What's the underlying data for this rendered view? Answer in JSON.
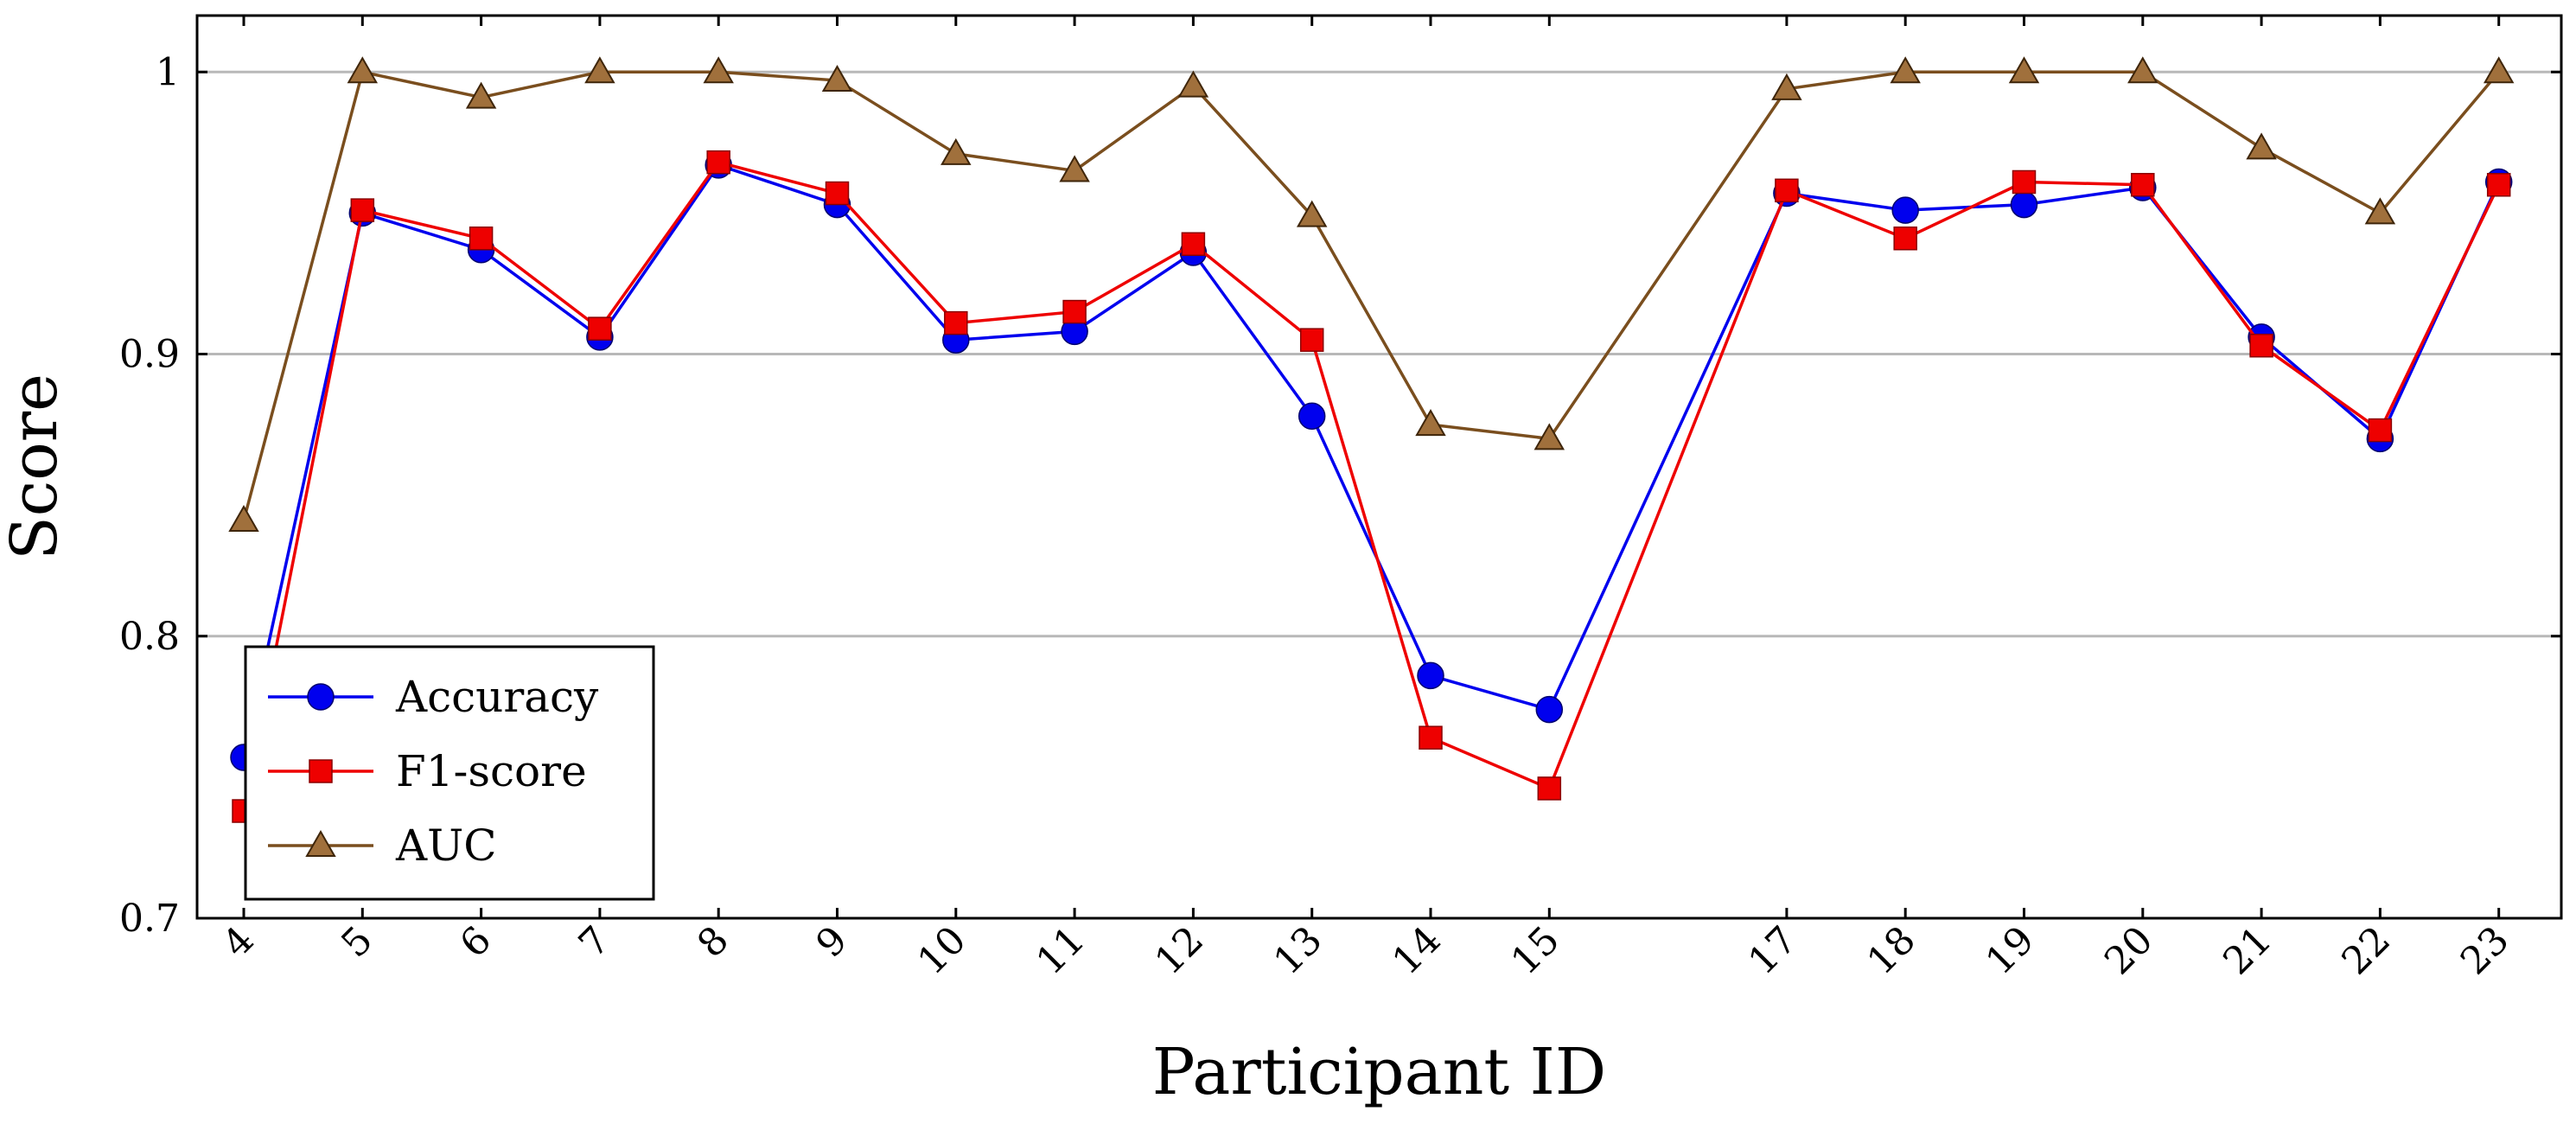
{
  "chart_data": {
    "type": "line",
    "xlabel": "Participant ID",
    "ylabel": "Score",
    "ylim": [
      0.7,
      1.02
    ],
    "xlim": [
      3.6,
      23.5
    ],
    "yticks": [
      0.7,
      0.8,
      0.9,
      1.0
    ],
    "ytick_labels": [
      "0.7",
      "0.8",
      "0.9",
      "1"
    ],
    "x": [
      4,
      5,
      6,
      7,
      8,
      9,
      10,
      11,
      12,
      13,
      14,
      15,
      17,
      18,
      19,
      20,
      21,
      22,
      23
    ],
    "xtick_labels": [
      "4",
      "5",
      "6",
      "7",
      "8",
      "9",
      "10",
      "11",
      "12",
      "13",
      "14",
      "15",
      "17",
      "18",
      "19",
      "20",
      "21",
      "22",
      "23"
    ],
    "grid": "horizontal",
    "legend_position": "bottom-left",
    "series": [
      {
        "name": "Accuracy",
        "color": "#0000ee",
        "marker": "circle",
        "values": [
          0.757,
          0.95,
          0.937,
          0.906,
          0.967,
          0.953,
          0.905,
          0.908,
          0.936,
          0.878,
          0.786,
          0.774,
          0.957,
          0.951,
          0.953,
          0.959,
          0.906,
          0.87,
          0.961
        ]
      },
      {
        "name": "F1-score",
        "color": "#ee0000",
        "marker": "square",
        "values": [
          0.738,
          0.951,
          0.941,
          0.909,
          0.968,
          0.957,
          0.911,
          0.915,
          0.939,
          0.905,
          0.764,
          0.746,
          0.958,
          0.941,
          0.961,
          0.96,
          0.903,
          0.873,
          0.96
        ]
      },
      {
        "name": "AUC",
        "color": "#7a4e1e",
        "marker": "triangle",
        "values": [
          0.841,
          1.0,
          0.991,
          1.0,
          1.0,
          0.997,
          0.971,
          0.965,
          0.995,
          0.949,
          0.875,
          0.87,
          0.994,
          1.0,
          1.0,
          1.0,
          0.973,
          0.95,
          1.0
        ]
      }
    ]
  }
}
